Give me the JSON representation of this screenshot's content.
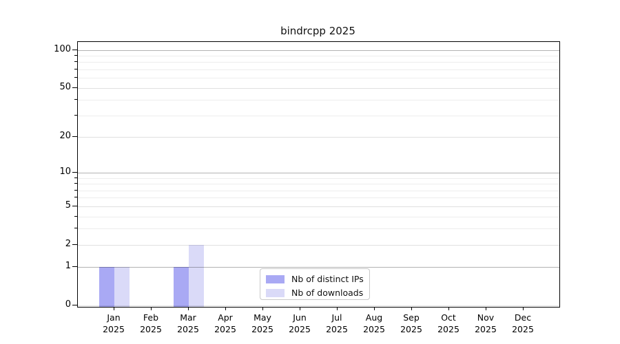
{
  "figure": {
    "background": "#ffffff"
  },
  "chart_data": {
    "type": "bar",
    "title": "bindrcpp 2025",
    "x_tick_labels": [
      [
        "Jan",
        "2025"
      ],
      [
        "Feb",
        "2025"
      ],
      [
        "Mar",
        "2025"
      ],
      [
        "Apr",
        "2025"
      ],
      [
        "May",
        "2025"
      ],
      [
        "Jun",
        "2025"
      ],
      [
        "Jul",
        "2025"
      ],
      [
        "Aug",
        "2025"
      ],
      [
        "Sep",
        "2025"
      ],
      [
        "Oct",
        "2025"
      ],
      [
        "Nov",
        "2025"
      ],
      [
        "Dec",
        "2025"
      ]
    ],
    "series": [
      {
        "name": "Nb of distinct IPs",
        "color": "#a9a9f4",
        "values": [
          1,
          0,
          1,
          0,
          0,
          0,
          0,
          0,
          0,
          0,
          0,
          0
        ]
      },
      {
        "name": "Nb of downloads",
        "color": "#dadaf8",
        "values": [
          1,
          0,
          2,
          0,
          0,
          0,
          0,
          0,
          0,
          0,
          0,
          0
        ]
      }
    ],
    "yscale": "log1p",
    "y_axis": {
      "major_ticks": [
        0,
        1,
        2,
        5,
        10,
        20,
        50,
        100
      ],
      "minor_ticks": [
        3,
        4,
        6,
        7,
        8,
        9,
        30,
        40,
        60,
        70,
        80,
        90
      ],
      "decade_ticks": [
        1,
        10,
        100
      ],
      "top_value": 115
    },
    "xlabel": "",
    "ylabel": "",
    "grid": {
      "horizontal": true,
      "vertical": false
    },
    "legend": {
      "position": "lower-center"
    }
  }
}
